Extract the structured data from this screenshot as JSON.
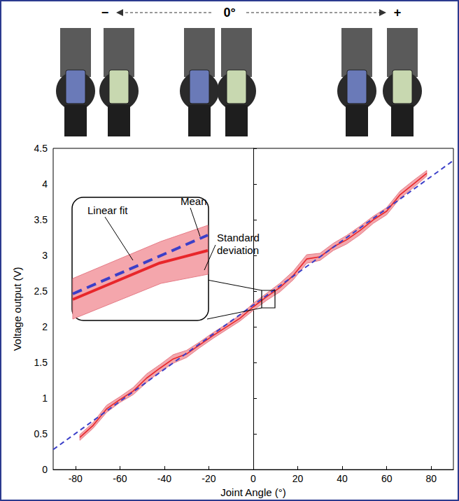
{
  "chart_data": {
    "type": "line",
    "x_label": "Joint Angle (°)",
    "y_label": "Voltage output (V)",
    "xlim": [
      -90,
      90
    ],
    "ylim": [
      0,
      4.5
    ],
    "xticks": [
      -80,
      -60,
      -40,
      -20,
      0,
      20,
      40,
      60,
      80
    ],
    "yticks": [
      0,
      0.5,
      1,
      1.5,
      2,
      2.5,
      3,
      3.5,
      4,
      4.5
    ],
    "grid": false,
    "annotations": {
      "top": [
        "−",
        "0°",
        "+"
      ],
      "inset": [
        "Linear fit",
        "Mean",
        "Standard deviation"
      ]
    },
    "series": [
      {
        "name": "Standard deviation",
        "type": "band",
        "color": "#f4a6ac",
        "x": [
          -78,
          -72,
          -66,
          -60,
          -54,
          -48,
          -42,
          -36,
          -30,
          -24,
          -18,
          -12,
          -6,
          0,
          6,
          12,
          18,
          24,
          30,
          36,
          42,
          48,
          54,
          60,
          66,
          72,
          78
        ],
        "values": [
          0.04,
          0.04,
          0.05,
          0.04,
          0.05,
          0.06,
          0.05,
          0.06,
          0.05,
          0.04,
          0.04,
          0.04,
          0.04,
          0.05,
          0.05,
          0.06,
          0.06,
          0.06,
          0.05,
          0.05,
          0.06,
          0.06,
          0.05,
          0.05,
          0.05,
          0.05,
          0.04
        ]
      },
      {
        "name": "Mean",
        "type": "line",
        "color": "#e8262a",
        "line_style": "solid",
        "x": [
          -78,
          -72,
          -66,
          -60,
          -54,
          -48,
          -42,
          -36,
          -30,
          -24,
          -18,
          -12,
          -6,
          0,
          6,
          12,
          18,
          24,
          30,
          36,
          42,
          48,
          54,
          60,
          66,
          72,
          78
        ],
        "values": [
          0.45,
          0.62,
          0.85,
          0.98,
          1.1,
          1.28,
          1.42,
          1.55,
          1.62,
          1.75,
          1.88,
          2.0,
          2.12,
          2.28,
          2.42,
          2.55,
          2.72,
          2.95,
          2.98,
          3.12,
          3.22,
          3.35,
          3.5,
          3.62,
          3.85,
          4.0,
          4.15
        ]
      },
      {
        "name": "Linear fit",
        "type": "line",
        "color": "#3b3fc8",
        "line_style": "dashed",
        "x": [
          -90,
          90
        ],
        "values": [
          0.28,
          4.33
        ]
      }
    ]
  }
}
